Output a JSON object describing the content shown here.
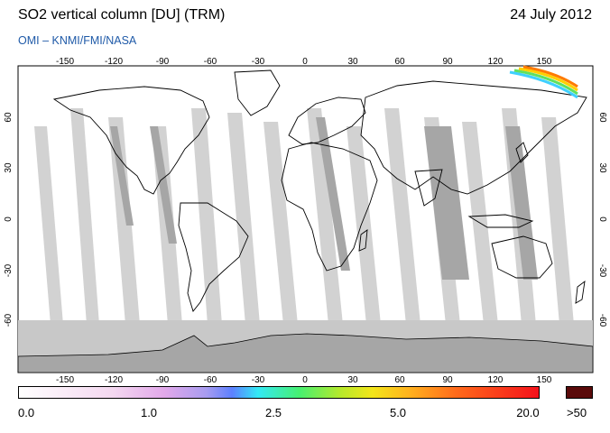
{
  "header": {
    "title": "SO2 vertical column [DU] (TRM)",
    "date": "24 July 2012",
    "source": "OMI  –  KNMI/FMI/NASA"
  },
  "map": {
    "lon_ticks": [
      "-150",
      "-120",
      "-90",
      "-60",
      "-30",
      "0",
      "30",
      "60",
      "90",
      "120",
      "150"
    ],
    "lat_ticks": [
      "60",
      "30",
      "0",
      "-30",
      "-60"
    ],
    "colors": {
      "ocean": "#ffffff",
      "land_outline": "#000000",
      "swath_light": "#d2d2d2",
      "swath_dark": "#a6a6a6",
      "polar_fill": "#c8c8c8"
    }
  },
  "colorbar": {
    "labels": [
      "0.0",
      "1.0",
      "2.5",
      "5.0",
      "20.0"
    ],
    "overflow_label": ">50",
    "overflow_color": "#5a0a0a"
  }
}
